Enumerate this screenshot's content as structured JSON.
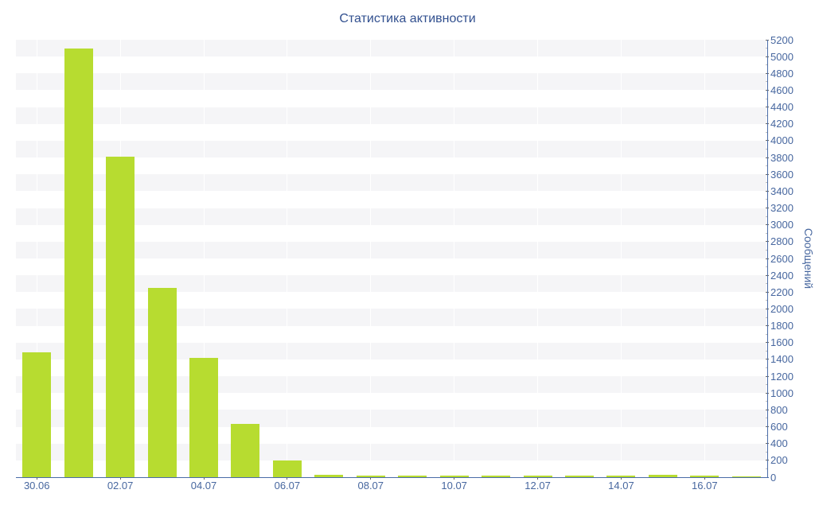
{
  "chart_data": {
    "type": "bar",
    "title": "Статистика активности",
    "xlabel": "",
    "ylabel": "Сообщений",
    "categories": [
      "30.06",
      "01.07",
      "02.07",
      "03.07",
      "04.07",
      "05.07",
      "06.07",
      "07.07",
      "08.07",
      "09.07",
      "10.07",
      "11.07",
      "12.07",
      "13.07",
      "14.07",
      "15.07",
      "16.07",
      "17.07"
    ],
    "values": [
      1480,
      5100,
      3810,
      2250,
      1415,
      630,
      195,
      26,
      15,
      15,
      18,
      15,
      16,
      18,
      15,
      33,
      18,
      12
    ],
    "x_tick_labels": [
      "30.06",
      "02.07",
      "04.07",
      "06.07",
      "08.07",
      "10.07",
      "12.07",
      "14.07",
      "16.07"
    ],
    "ylim": [
      0,
      5200
    ],
    "y_tick_step": 200,
    "y_minor_tick_step": 100,
    "grid": "alternating horizontal bands, white vertical gridlines at labeled x ticks",
    "legend": "none",
    "colors": {
      "bar": "#b7dc30",
      "band": "#f5f5f7",
      "axis_line": "#4a6ca8",
      "label_text": "#47679f",
      "title_text": "#32508f",
      "major_tick": "#666666",
      "minor_tick": "#bbbbbb",
      "x_gridline": "#ffffff",
      "background": "#ffffff"
    }
  }
}
